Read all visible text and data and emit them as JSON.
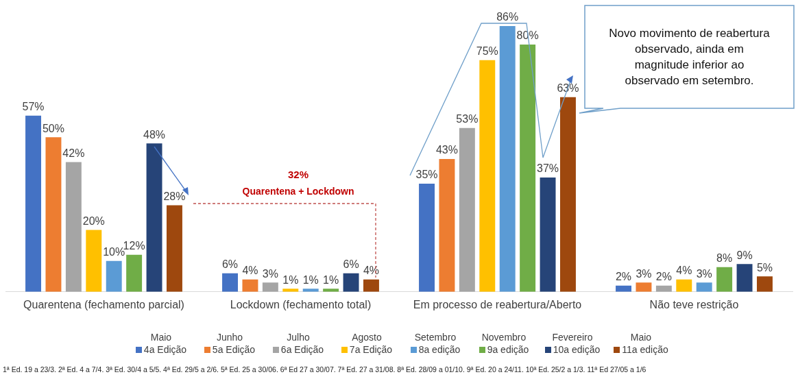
{
  "chart_data": {
    "type": "bar",
    "categories": [
      "Quarentena (fechamento parcial)",
      "Lockdown (fechamento total)",
      "Em processo de reabertura/Aberto",
      "Não teve restrição"
    ],
    "series": [
      {
        "name": "4a Edição",
        "color": "#4472c4",
        "values": [
          57,
          6,
          35,
          2
        ],
        "value_labels": [
          "57%",
          "6%",
          "35%",
          "2%"
        ]
      },
      {
        "name": "5a Edição",
        "color": "#ed7d31",
        "values": [
          50,
          4,
          43,
          3
        ],
        "value_labels": [
          "50%",
          "4%",
          "43%",
          "3%"
        ]
      },
      {
        "name": "6a Edição",
        "color": "#a5a5a5",
        "values": [
          42,
          3,
          53,
          2
        ],
        "value_labels": [
          "42%",
          "3%",
          "53%",
          "2%"
        ]
      },
      {
        "name": "7a Edição",
        "color": "#ffc000",
        "values": [
          20,
          1,
          75,
          4
        ],
        "value_labels": [
          "20%",
          "1%",
          "75%",
          "4%"
        ]
      },
      {
        "name": "8a edição",
        "color": "#5b9bd5",
        "values": [
          10,
          1,
          86,
          3
        ],
        "value_labels": [
          "10%",
          "1%",
          "86%",
          "3%"
        ]
      },
      {
        "name": "9a edição",
        "color": "#70ad47",
        "values": [
          12,
          1,
          80,
          8
        ],
        "value_labels": [
          "12%",
          "1%",
          "80%",
          "8%"
        ]
      },
      {
        "name": "10a edição",
        "color": "#264478",
        "values": [
          48,
          6,
          37,
          9
        ],
        "value_labels": [
          "48%",
          "6%",
          "37%",
          "9%"
        ]
      },
      {
        "name": "11a edição",
        "color": "#9e480e",
        "values": [
          28,
          4,
          63,
          5
        ],
        "value_labels": [
          "28%",
          "4%",
          "63%",
          "5%"
        ]
      }
    ],
    "legend": "bottom",
    "grid": false,
    "annotations": [
      "Novo movimento de reabertura observado, ainda em magnitude inferior ao observado em setembro.",
      "32%",
      "Quarentena + Lockdown",
      "Maio",
      "Junho",
      "Julho",
      "Agosto",
      "Setembro",
      "Novembro",
      "Fevereiro",
      "Maio",
      "1ª Ed. 19 a 23/3. 2ª Ed. 4 a 7/4. 3ª Ed. 30/4 a 5/5. 4ª Ed. 29/5 a 2/6. 5ª Ed. 25 a 30/06. 6ª Ed 27 a 30/07. 7ª Ed. 27 a 31/08. 8ª Ed. 28/09 a 01/10. 9ª Ed. 20 a 24/11. 10ª Ed. 25/2 a 1/3. 11ª Ed 27/05 a 1/6"
    ]
  }
}
